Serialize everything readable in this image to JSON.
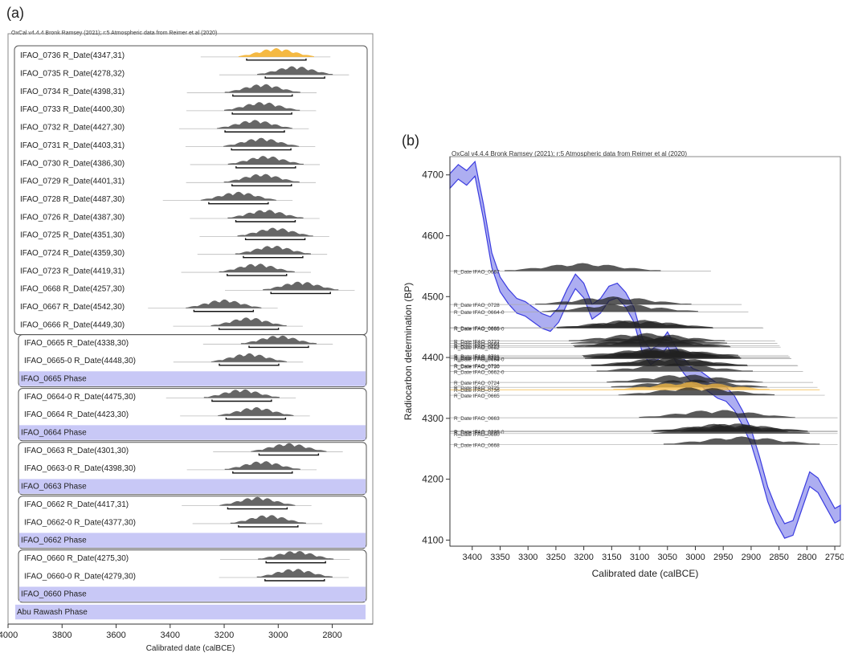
{
  "panels": {
    "a_label": "(a)",
    "b_label": "(b)"
  },
  "colors": {
    "curve_fill": "#9fa0ee",
    "curve_line": "#3b3ce0",
    "dist_fill": "#666666",
    "highlight_fill": "#f5b942",
    "phase_fill": "#c8c8f6",
    "box_stroke": "#555555"
  },
  "chart_data": [
    {
      "type": "multiplot",
      "header": "OxCal v4.4.4 Bronk Ramsey (2021); r:5 Atmospheric data from Reimer et al (2020)",
      "xlabel": "Calibrated date (calBCE)",
      "xlim": [
        4000,
        2650
      ],
      "xticks": [
        4000,
        3800,
        3600,
        3400,
        3200,
        3000,
        2800
      ],
      "rows": [
        {
          "label": "IFAO_0736 R_Date(4347,31)",
          "type": "date",
          "bp": 4347,
          "err": 31,
          "highlight": true
        },
        {
          "label": "IFAO_0735 R_Date(4278,32)",
          "type": "date",
          "bp": 4278,
          "err": 32
        },
        {
          "label": "IFAO_0734 R_Date(4398,31)",
          "type": "date",
          "bp": 4398,
          "err": 31
        },
        {
          "label": "IFAO_0733 R_Date(4400,30)",
          "type": "date",
          "bp": 4400,
          "err": 30
        },
        {
          "label": "IFAO_0732 R_Date(4427,30)",
          "type": "date",
          "bp": 4427,
          "err": 30
        },
        {
          "label": "IFAO_0731 R_Date(4403,31)",
          "type": "date",
          "bp": 4403,
          "err": 31
        },
        {
          "label": "IFAO_0730 R_Date(4386,30)",
          "type": "date",
          "bp": 4386,
          "err": 30
        },
        {
          "label": "IFAO_0729 R_Date(4401,31)",
          "type": "date",
          "bp": 4401,
          "err": 31
        },
        {
          "label": "IFAO_0728 R_Date(4487,30)",
          "type": "date",
          "bp": 4487,
          "err": 30
        },
        {
          "label": "IFAO_0726 R_Date(4387,30)",
          "type": "date",
          "bp": 4387,
          "err": 30
        },
        {
          "label": "IFAO_0725 R_Date(4351,30)",
          "type": "date",
          "bp": 4351,
          "err": 30
        },
        {
          "label": "IFAO_0724 R_Date(4359,30)",
          "type": "date",
          "bp": 4359,
          "err": 30
        },
        {
          "label": "IFAO_0723 R_Date(4419,31)",
          "type": "date",
          "bp": 4419,
          "err": 31
        },
        {
          "label": "IFAO_0668 R_Date(4257,30)",
          "type": "date",
          "bp": 4257,
          "err": 30
        },
        {
          "label": "IFAO_0667 R_Date(4542,30)",
          "type": "date",
          "bp": 4542,
          "err": 30
        },
        {
          "label": "IFAO_0666 R_Date(4449,30)",
          "type": "date",
          "bp": 4449,
          "err": 30
        },
        {
          "label": "IFAO_0665 R_Date(4338,30)",
          "type": "date",
          "bp": 4338,
          "err": 30,
          "group": 1
        },
        {
          "label": "IFAO_0665-0 R_Date(4448,30)",
          "type": "date",
          "bp": 4448,
          "err": 30,
          "group": 1
        },
        {
          "label": "IFAO_0665 Phase",
          "type": "phase",
          "group": 1
        },
        {
          "label": "IFAO_0664-0 R_Date(4475,30)",
          "type": "date",
          "bp": 4475,
          "err": 30,
          "group": 2
        },
        {
          "label": "IFAO_0664 R_Date(4423,30)",
          "type": "date",
          "bp": 4423,
          "err": 30,
          "group": 2
        },
        {
          "label": "IFAO_0664 Phase",
          "type": "phase",
          "group": 2
        },
        {
          "label": "IFAO_0663 R_Date(4301,30)",
          "type": "date",
          "bp": 4301,
          "err": 30,
          "group": 3
        },
        {
          "label": "IFAO_0663-0 R_Date(4398,30)",
          "type": "date",
          "bp": 4398,
          "err": 30,
          "group": 3
        },
        {
          "label": "IFAO_0663 Phase",
          "type": "phase",
          "group": 3
        },
        {
          "label": "IFAO_0662 R_Date(4417,31)",
          "type": "date",
          "bp": 4417,
          "err": 31,
          "group": 4
        },
        {
          "label": "IFAO_0662-0 R_Date(4377,30)",
          "type": "date",
          "bp": 4377,
          "err": 30,
          "group": 4
        },
        {
          "label": "IFAO_0662 Phase",
          "type": "phase",
          "group": 4
        },
        {
          "label": "IFAO_0660 R_Date(4275,30)",
          "type": "date",
          "bp": 4275,
          "err": 30,
          "group": 5
        },
        {
          "label": "IFAO_0660-0 R_Date(4279,30)",
          "type": "date",
          "bp": 4279,
          "err": 30,
          "group": 5
        },
        {
          "label": "IFAO_0660 Phase",
          "type": "phase",
          "group": 5
        },
        {
          "label": "Abu Rawash Phase",
          "type": "phase",
          "group": 0
        }
      ]
    },
    {
      "type": "area",
      "header": "OxCal v4.4.4 Bronk Ramsey (2021); r:5 Atmospheric data from Reimer et al (2020)",
      "xlabel": "Calibrated date (calBCE)",
      "ylabel": "Radiocarbon determination (BP)",
      "xlim": [
        3440,
        2740
      ],
      "ylim": [
        4090,
        4730
      ],
      "xticks": [
        3400,
        3350,
        3300,
        3250,
        3200,
        3150,
        3100,
        3050,
        3000,
        2950,
        2900,
        2850,
        2800,
        2750
      ],
      "yticks": [
        4100,
        4200,
        4300,
        4400,
        4500,
        4600,
        4700
      ],
      "curve": {
        "x": [
          3440,
          3425,
          3410,
          3395,
          3380,
          3365,
          3350,
          3335,
          3320,
          3305,
          3290,
          3275,
          3260,
          3245,
          3230,
          3215,
          3200,
          3185,
          3170,
          3155,
          3140,
          3125,
          3110,
          3095,
          3080,
          3065,
          3050,
          3035,
          3020,
          3005,
          2990,
          2975,
          2960,
          2945,
          2930,
          2915,
          2900,
          2885,
          2870,
          2855,
          2840,
          2825,
          2810,
          2795,
          2780,
          2765,
          2750,
          2740
        ],
        "y": [
          4690,
          4705,
          4695,
          4710,
          4640,
          4560,
          4520,
          4500,
          4485,
          4480,
          4470,
          4460,
          4455,
          4470,
          4500,
          4525,
          4510,
          4475,
          4485,
          4505,
          4510,
          4495,
          4470,
          4420,
          4400,
          4410,
          4430,
          4405,
          4385,
          4370,
          4365,
          4355,
          4345,
          4340,
          4325,
          4300,
          4270,
          4225,
          4175,
          4140,
          4115,
          4120,
          4160,
          4200,
          4190,
          4165,
          4140,
          4145
        ]
      },
      "dates": [
        {
          "label": "R_Date IFAO_0667",
          "bp": 4542
        },
        {
          "label": "R_Date IFAO_0728",
          "bp": 4487
        },
        {
          "label": "R_Date IFAO_0664-0",
          "bp": 4475
        },
        {
          "label": "R_Date IFAO_0666",
          "bp": 4449
        },
        {
          "label": "R_Date IFAO_0665-0",
          "bp": 4448
        },
        {
          "label": "R_Date IFAO_0732",
          "bp": 4427
        },
        {
          "label": "R_Date IFAO_0664",
          "bp": 4423
        },
        {
          "label": "R_Date IFAO_0723",
          "bp": 4419
        },
        {
          "label": "R_Date IFAO_0662",
          "bp": 4417
        },
        {
          "label": "R_Date IFAO_0731",
          "bp": 4403
        },
        {
          "label": "R_Date IFAO_0729",
          "bp": 4401
        },
        {
          "label": "R_Date IFAO_0733",
          "bp": 4400
        },
        {
          "label": "R_Date IFAO_0734",
          "bp": 4398
        },
        {
          "label": "R_Date IFAO_0663-0",
          "bp": 4398
        },
        {
          "label": "R_Date IFAO_0726",
          "bp": 4387
        },
        {
          "label": "R_Date IFAO_0730",
          "bp": 4386
        },
        {
          "label": "R_Date IFAO_0662-0",
          "bp": 4377
        },
        {
          "label": "R_Date IFAO_0724",
          "bp": 4359
        },
        {
          "label": "R_Date IFAO_0725",
          "bp": 4351
        },
        {
          "label": "R_Date IFAO_0736",
          "bp": 4347,
          "highlight": true
        },
        {
          "label": "R_Date IFAO_0665",
          "bp": 4338
        },
        {
          "label": "R_Date IFAO_0663",
          "bp": 4301
        },
        {
          "label": "R_Date IFAO_0660-0",
          "bp": 4279
        },
        {
          "label": "R_Date IFAO_0735",
          "bp": 4278
        },
        {
          "label": "R_Date IFAO_0660",
          "bp": 4275
        },
        {
          "label": "R_Date IFAO_0668",
          "bp": 4257
        }
      ]
    }
  ]
}
